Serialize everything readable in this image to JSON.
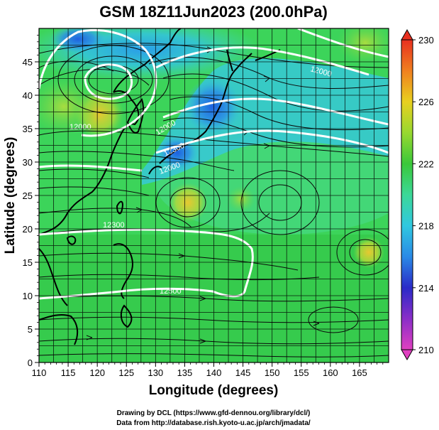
{
  "title": "GSM 18Z11Jun2023 (200.0hPa)",
  "xlabel": "Longitude (degrees)",
  "ylabel": "Latitude  (degrees)",
  "credits": [
    "Drawing by DCL (https://www.gfd-dennou.org/library/dcl/)",
    "Data from http://database.rish.kyoto-u.ac.jp/arch/jmadata/"
  ],
  "chart_data": {
    "type": "heatmap",
    "title": "GSM 18Z11Jun2023 (200.0hPa)",
    "xlabel": "Longitude (degrees)",
    "ylabel": "Latitude  (degrees)",
    "xlim": [
      110,
      170
    ],
    "ylim": [
      0,
      50
    ],
    "x_ticks": [
      "110",
      "115",
      "120",
      "125",
      "130",
      "135",
      "140",
      "145",
      "150",
      "155",
      "160",
      "165"
    ],
    "y_ticks": [
      "0",
      "5",
      "10",
      "15",
      "20",
      "25",
      "30",
      "35",
      "40",
      "45"
    ],
    "colorbar": {
      "min": 210,
      "max": 230,
      "ticks": [
        "210",
        "214",
        "218",
        "222",
        "226",
        "230"
      ]
    },
    "contour_labels": [
      "12000",
      "12000",
      "12000",
      "12300",
      "12000",
      "12300",
      "12500"
    ],
    "overlays": [
      "streamlines",
      "height contours",
      "coastlines",
      "lat-lon grid"
    ]
  }
}
